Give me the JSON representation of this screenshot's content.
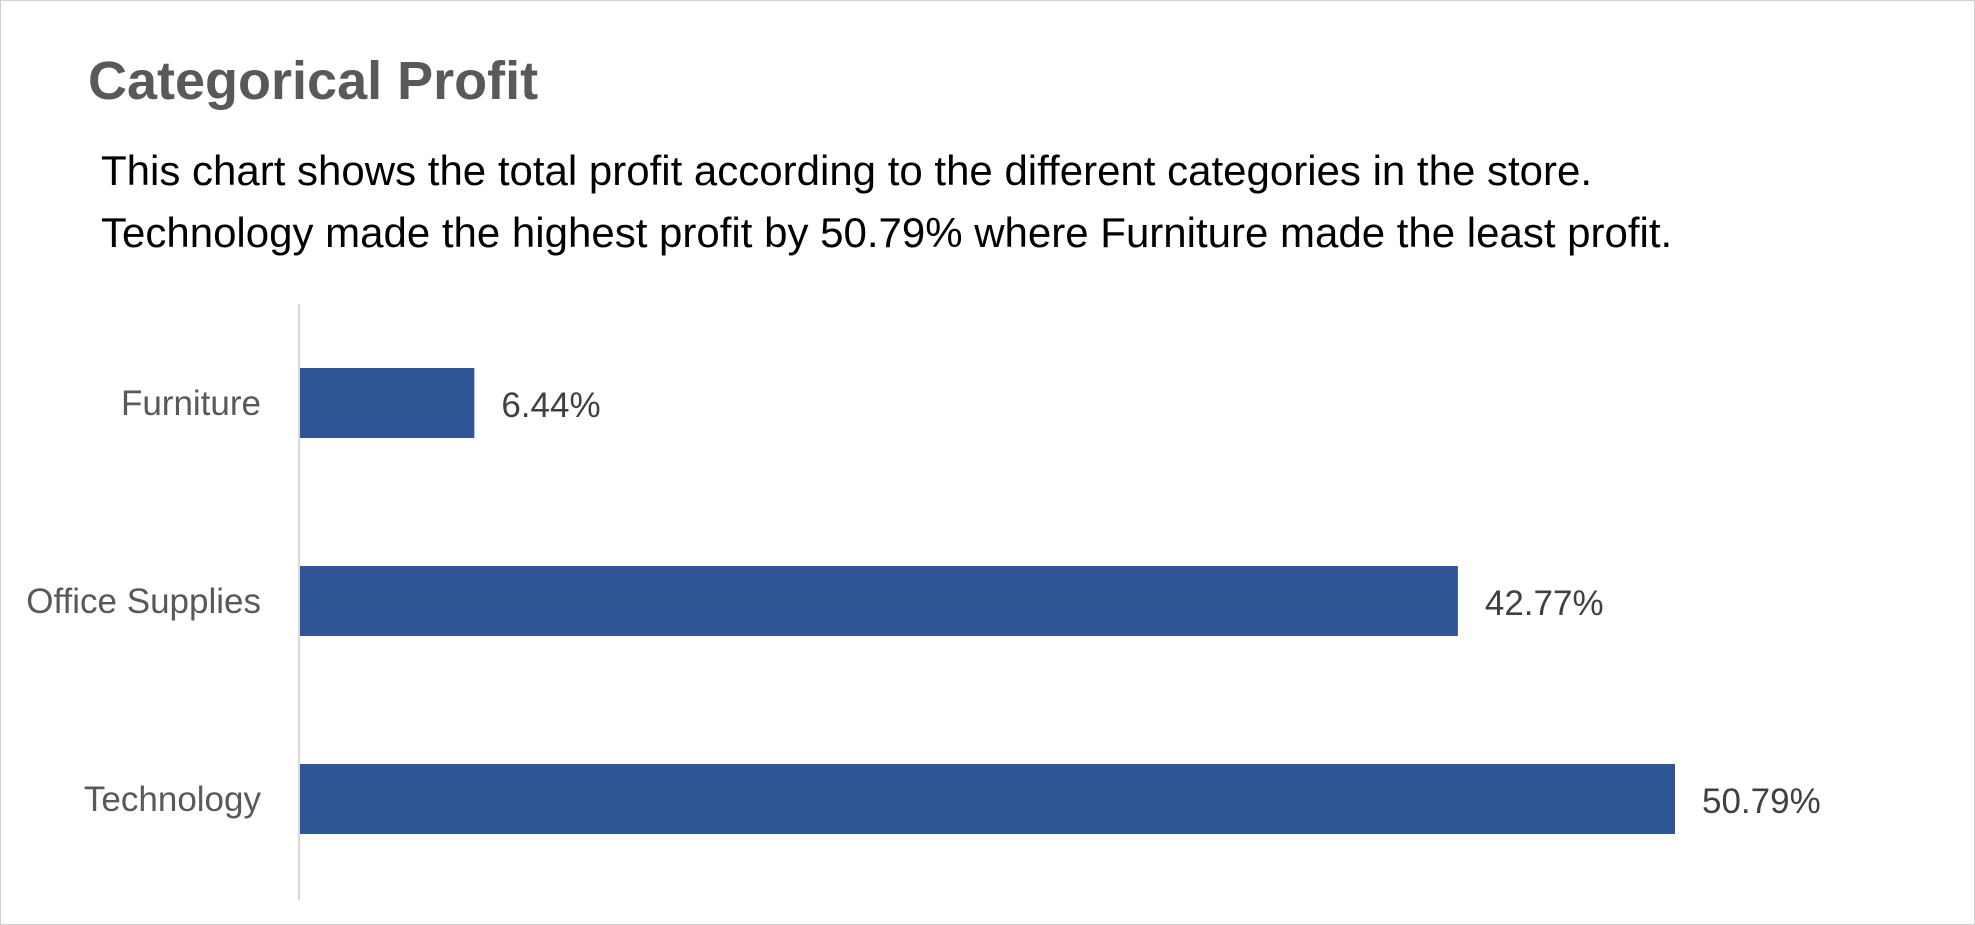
{
  "chart_data": {
    "type": "bar",
    "orientation": "horizontal",
    "title": "Categorical Profit",
    "description_lines": [
      "This chart shows the total profit according to the different categories in the store.",
      "Technology made the highest profit by 50.79% where Furniture made the least profit."
    ],
    "categories": [
      "Furniture",
      "Office Supplies",
      "Technology"
    ],
    "values": [
      6.44,
      42.77,
      50.79
    ],
    "data_labels": [
      "6.44%",
      "42.77%",
      "50.79%"
    ],
    "xlim": [
      0,
      50.79
    ],
    "grid": false,
    "legend": "none",
    "colors": {
      "bar": "#2F5597",
      "category_label": "#595959",
      "data_label": "#404040",
      "axis_line": "#d9d9d9"
    }
  }
}
